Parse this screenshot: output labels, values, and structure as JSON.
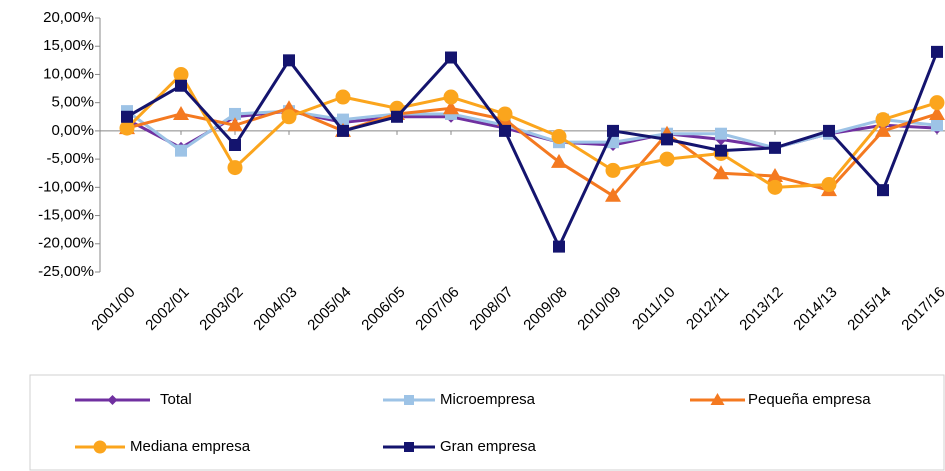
{
  "chart_data": {
    "type": "line",
    "categories": [
      "2001/00",
      "2002/01",
      "2003/02",
      "2004/03",
      "2005/04",
      "2006/05",
      "2007/06",
      "2008/07",
      "2009/08",
      "2010/09",
      "2011/10",
      "2012/11",
      "2013/12",
      "2014/13",
      "2015/14",
      "2017/16"
    ],
    "series": [
      {
        "name": "Total",
        "color": "#7030a0",
        "marker": "diamond",
        "values": [
          2,
          -3,
          2.5,
          3.5,
          1.5,
          2.5,
          2.5,
          0.5,
          -2,
          -2.5,
          -0.5,
          -1.5,
          -3,
          -0.5,
          1,
          0.5
        ]
      },
      {
        "name": "Microempresa",
        "color": "#9dc3e6",
        "marker": "square",
        "values": [
          3.5,
          -3.5,
          3,
          3.5,
          2,
          3,
          3,
          1,
          -2,
          -2,
          -0.5,
          -0.5,
          -3,
          -0.5,
          2,
          1
        ]
      },
      {
        "name": "Pequeña empresa",
        "color": "#f47920",
        "marker": "triangle",
        "values": [
          0.5,
          3,
          1,
          4,
          0,
          3,
          4,
          2,
          -5.5,
          -11.5,
          -0.5,
          -7.5,
          -8,
          -10.5,
          0,
          3
        ]
      },
      {
        "name": "Mediana empresa",
        "color": "#fba51d",
        "marker": "circle",
        "values": [
          0.5,
          10,
          -6.5,
          2.5,
          6,
          4,
          6,
          3,
          -1,
          -7,
          -5,
          -4,
          -10,
          -9.5,
          2,
          5
        ]
      },
      {
        "name": "Gran empresa",
        "color": "#14146e",
        "marker": "square",
        "values": [
          2.5,
          8,
          -2.5,
          12.5,
          0,
          2.5,
          13,
          0,
          -20.5,
          0,
          -1.5,
          -3.5,
          -3,
          0,
          -10.5,
          14
        ]
      }
    ],
    "ylim": [
      -25,
      20
    ],
    "yticks": [
      {
        "value": -25,
        "label": "-25,00%"
      },
      {
        "value": -20,
        "label": "-20,00%"
      },
      {
        "value": -15,
        "label": "-15,00%"
      },
      {
        "value": -10,
        "label": "-10,00%"
      },
      {
        "value": -5,
        "label": "-5,00%"
      },
      {
        "value": 0,
        "label": "0,00%"
      },
      {
        "value": 5,
        "label": "5,00%"
      },
      {
        "value": 10,
        "label": "10,00%"
      },
      {
        "value": 15,
        "label": "15,00%"
      },
      {
        "value": 20,
        "label": "20,00%"
      }
    ],
    "grid": false,
    "legend": "bottom"
  }
}
